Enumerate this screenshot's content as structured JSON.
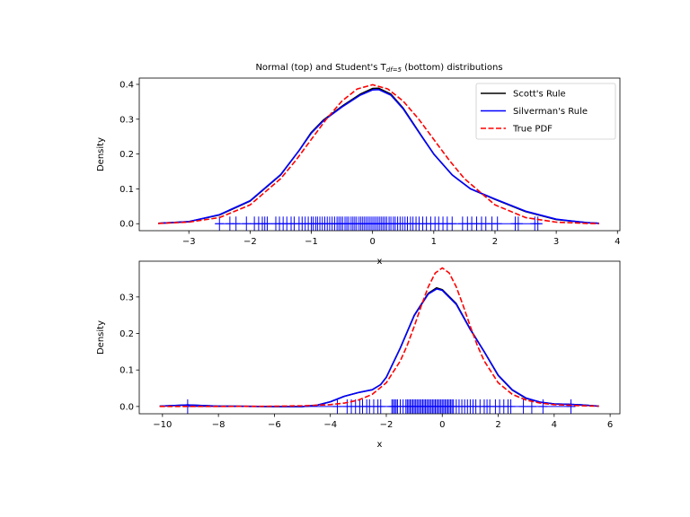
{
  "chart_data": [
    {
      "type": "line",
      "title": "Normal (top) and Student's T",
      "title_sub": "df=5",
      "title_suffix": " (bottom) distributions",
      "xlabel": "x",
      "ylabel": "Density",
      "xlim": [
        -3.81,
        4.04
      ],
      "ylim": [
        -0.02,
        0.418
      ],
      "xticks": [
        -3,
        -2,
        -1,
        0,
        1,
        2,
        3,
        4
      ],
      "xtick_labels": [
        "−3",
        "−2",
        "−1",
        "0",
        "1",
        "2",
        "3",
        "4"
      ],
      "yticks": [
        0.0,
        0.1,
        0.2,
        0.3,
        0.4
      ],
      "ytick_labels": [
        "0.0",
        "0.1",
        "0.2",
        "0.3",
        "0.4"
      ],
      "legend": {
        "placement": "upper-right",
        "entries": [
          {
            "label": "Scott's Rule",
            "color": "#000000",
            "style": "solid"
          },
          {
            "label": "Silverman's Rule",
            "color": "#0000ff",
            "style": "solid"
          },
          {
            "label": "True PDF",
            "color": "#ff0000",
            "style": "dashed"
          }
        ]
      },
      "series": [
        {
          "name": "Scott's Rule",
          "color": "#000000",
          "style": "solid",
          "x": [
            -3.5,
            -3,
            -2.5,
            -2,
            -1.5,
            -1.2,
            -1,
            -0.8,
            -0.5,
            -0.2,
            0,
            0.1,
            0.3,
            0.5,
            0.8,
            1,
            1.3,
            1.6,
            2,
            2.5,
            3,
            3.5,
            3.7
          ],
          "y": [
            0.001,
            0.006,
            0.025,
            0.065,
            0.14,
            0.21,
            0.262,
            0.298,
            0.337,
            0.372,
            0.388,
            0.389,
            0.372,
            0.332,
            0.252,
            0.2,
            0.14,
            0.1,
            0.07,
            0.035,
            0.012,
            0.003,
            0.001
          ]
        },
        {
          "name": "Silverman's Rule",
          "color": "#0000ff",
          "style": "solid",
          "x": [
            -3.5,
            -3,
            -2.5,
            -2,
            -1.5,
            -1.2,
            -1,
            -0.8,
            -0.5,
            -0.2,
            0,
            0.1,
            0.3,
            0.5,
            0.8,
            1,
            1.3,
            1.6,
            2,
            2.5,
            3,
            3.5,
            3.7
          ],
          "y": [
            0.001,
            0.006,
            0.026,
            0.066,
            0.141,
            0.21,
            0.26,
            0.296,
            0.335,
            0.369,
            0.384,
            0.385,
            0.369,
            0.33,
            0.251,
            0.2,
            0.14,
            0.1,
            0.071,
            0.036,
            0.013,
            0.003,
            0.001
          ]
        },
        {
          "name": "True PDF",
          "color": "#ff0000",
          "style": "dashed",
          "x": [
            -3.5,
            -3,
            -2.5,
            -2,
            -1.5,
            -1.25,
            -1,
            -0.75,
            -0.5,
            -0.25,
            0,
            0.25,
            0.5,
            0.75,
            1,
            1.25,
            1.5,
            2,
            2.5,
            3,
            3.5,
            3.7
          ],
          "y": [
            0.0009,
            0.0044,
            0.0175,
            0.054,
            0.1295,
            0.1826,
            0.242,
            0.3011,
            0.3521,
            0.3867,
            0.3989,
            0.3867,
            0.3521,
            0.3011,
            0.242,
            0.1826,
            0.1295,
            0.054,
            0.0175,
            0.0044,
            0.0009,
            0.0004
          ]
        }
      ],
      "rug": {
        "color": "#0000ff",
        "y": 0.0,
        "x": [
          -2.5,
          -2.33,
          -2.23,
          -2.06,
          -1.93,
          -1.86,
          -1.8,
          -1.76,
          -1.72,
          -1.58,
          -1.52,
          -1.46,
          -1.4,
          -1.33,
          -1.28,
          -1.2,
          -1.15,
          -1.1,
          -1.05,
          -1.0,
          -0.97,
          -0.93,
          -0.9,
          -0.86,
          -0.82,
          -0.78,
          -0.74,
          -0.7,
          -0.66,
          -0.62,
          -0.58,
          -0.55,
          -0.52,
          -0.49,
          -0.45,
          -0.42,
          -0.39,
          -0.35,
          -0.32,
          -0.29,
          -0.26,
          -0.22,
          -0.19,
          -0.16,
          -0.13,
          -0.1,
          -0.07,
          -0.04,
          -0.01,
          0.02,
          0.05,
          0.08,
          0.11,
          0.14,
          0.17,
          0.2,
          0.23,
          0.27,
          0.3,
          0.34,
          0.37,
          0.41,
          0.45,
          0.49,
          0.53,
          0.57,
          0.62,
          0.66,
          0.71,
          0.76,
          0.82,
          0.88,
          0.95,
          1.02,
          1.08,
          1.15,
          1.22,
          1.3,
          1.47,
          1.55,
          1.62,
          1.7,
          1.78,
          1.85,
          1.95,
          2.04,
          2.33,
          2.38,
          2.65,
          2.7
        ]
      }
    },
    {
      "type": "line",
      "xlabel": "x",
      "ylabel": "Density",
      "xlim": [
        -10.83,
        6.35
      ],
      "ylim": [
        -0.02,
        0.398
      ],
      "xticks": [
        -10,
        -8,
        -6,
        -4,
        -2,
        0,
        2,
        4,
        6
      ],
      "xtick_labels": [
        "−10",
        "−8",
        "−6",
        "−4",
        "−2",
        "0",
        "2",
        "4",
        "6"
      ],
      "yticks": [
        0.0,
        0.1,
        0.2,
        0.3
      ],
      "ytick_labels": [
        "0.0",
        "0.1",
        "0.2",
        "0.3"
      ],
      "series": [
        {
          "name": "Scott's Rule",
          "color": "#000000",
          "style": "solid",
          "x": [
            -10.1,
            -9.1,
            -8,
            -6,
            -5,
            -4.5,
            -4,
            -3.5,
            -3,
            -2.5,
            -2.2,
            -2,
            -1.5,
            -1,
            -0.5,
            -0.2,
            0,
            0.5,
            1,
            1.5,
            2,
            2.5,
            3,
            3.5,
            4,
            4.5,
            5,
            5.6
          ],
          "y": [
            0.001,
            0.004,
            0.001,
            0.0,
            0.0,
            0.003,
            0.013,
            0.028,
            0.038,
            0.046,
            0.06,
            0.08,
            0.16,
            0.25,
            0.31,
            0.325,
            0.32,
            0.282,
            0.212,
            0.15,
            0.085,
            0.045,
            0.022,
            0.012,
            0.007,
            0.006,
            0.004,
            0.001
          ]
        },
        {
          "name": "Silverman's Rule",
          "color": "#0000ff",
          "style": "solid",
          "x": [
            -10.1,
            -9.1,
            -8,
            -6,
            -5,
            -4.5,
            -4,
            -3.5,
            -3,
            -2.5,
            -2.2,
            -2,
            -1.5,
            -1,
            -0.5,
            -0.2,
            0,
            0.5,
            1,
            1.5,
            2,
            2.5,
            3,
            3.5,
            4,
            4.5,
            5,
            5.6
          ],
          "y": [
            0.001,
            0.004,
            0.001,
            0.0,
            0.0,
            0.003,
            0.013,
            0.028,
            0.038,
            0.046,
            0.06,
            0.08,
            0.16,
            0.249,
            0.308,
            0.322,
            0.318,
            0.28,
            0.211,
            0.15,
            0.086,
            0.046,
            0.023,
            0.012,
            0.007,
            0.006,
            0.004,
            0.001
          ]
        },
        {
          "name": "True PDF",
          "color": "#ff0000",
          "style": "dashed",
          "x": [
            -10.1,
            -8,
            -6,
            -5,
            -4,
            -3.5,
            -3,
            -2.5,
            -2,
            -1.5,
            -1.25,
            -1,
            -0.75,
            -0.5,
            -0.25,
            0,
            0.25,
            0.5,
            0.75,
            1,
            1.25,
            1.5,
            2,
            2.5,
            3,
            3.5,
            4,
            5,
            5.6
          ],
          "y": [
            4e-05,
            0.00014,
            0.0007,
            0.0018,
            0.0051,
            0.0092,
            0.0173,
            0.0333,
            0.0651,
            0.1245,
            0.1679,
            0.2197,
            0.2757,
            0.3279,
            0.3657,
            0.3796,
            0.3657,
            0.3279,
            0.2757,
            0.2197,
            0.1679,
            0.1245,
            0.0651,
            0.0333,
            0.0173,
            0.0092,
            0.0051,
            0.0018,
            0.001
          ]
        }
      ],
      "rug": {
        "color": "#0000ff",
        "y": 0.0,
        "x": [
          -9.1,
          -3.75,
          -3.4,
          -3.25,
          -3.1,
          -2.95,
          -2.85,
          -2.7,
          -2.6,
          -2.45,
          -2.3,
          -2.2,
          -1.8,
          -1.75,
          -1.7,
          -1.65,
          -1.6,
          -1.5,
          -1.4,
          -1.3,
          -1.25,
          -1.2,
          -1.15,
          -1.1,
          -1.05,
          -1.0,
          -0.95,
          -0.9,
          -0.85,
          -0.8,
          -0.75,
          -0.7,
          -0.65,
          -0.6,
          -0.55,
          -0.5,
          -0.45,
          -0.4,
          -0.35,
          -0.3,
          -0.25,
          -0.2,
          -0.15,
          -0.1,
          -0.05,
          0,
          0.05,
          0.1,
          0.15,
          0.2,
          0.25,
          0.3,
          0.35,
          0.4,
          0.5,
          0.6,
          0.7,
          0.8,
          0.9,
          1.0,
          1.1,
          1.2,
          1.35,
          1.5,
          1.6,
          1.7,
          1.9,
          2.05,
          2.2,
          2.35,
          2.45,
          2.9,
          3.2,
          3.6,
          4.6
        ]
      }
    }
  ]
}
